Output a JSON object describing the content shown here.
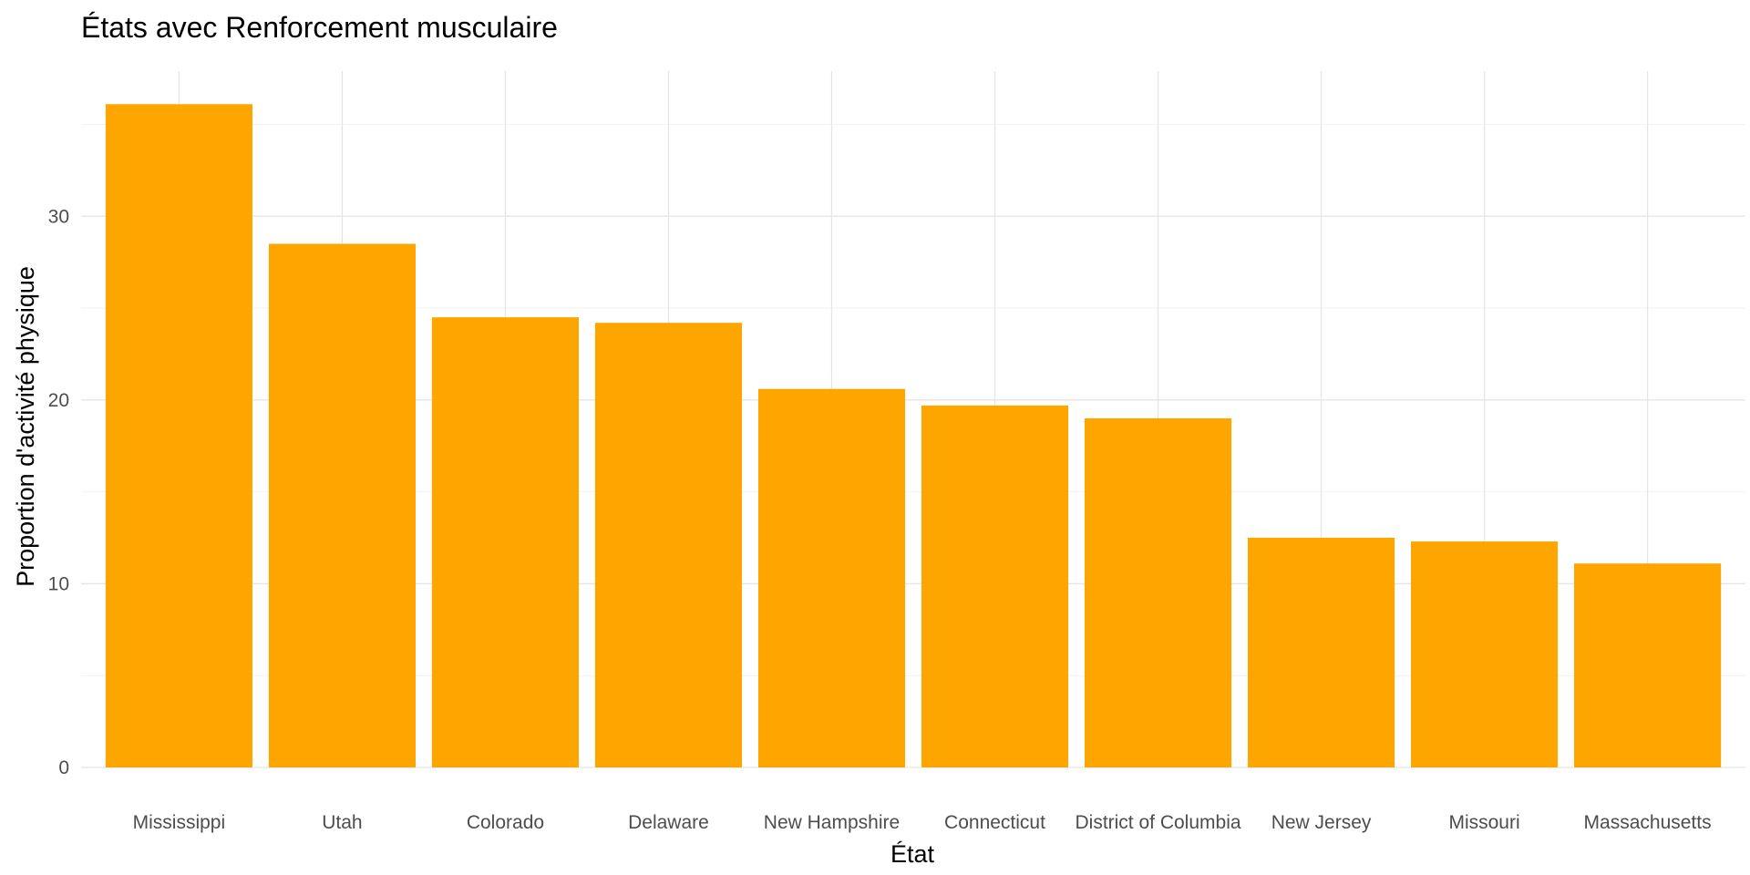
{
  "chart_data": {
    "type": "bar",
    "title": "États avec Renforcement musculaire",
    "xlabel": "État",
    "ylabel": "Proportion d'activité physique",
    "categories": [
      "Mississippi",
      "Utah",
      "Colorado",
      "Delaware",
      "New Hampshire",
      "Connecticut",
      "District of Columbia",
      "New Jersey",
      "Missouri",
      "Massachusetts"
    ],
    "values": [
      36.1,
      28.5,
      24.5,
      24.2,
      20.6,
      19.7,
      19.0,
      12.5,
      12.3,
      11.1
    ],
    "ylim": [
      0,
      37.9
    ],
    "yticks": [
      0,
      10,
      20,
      30
    ],
    "ytick_labels": [
      "0",
      "10",
      "20",
      "30"
    ],
    "grid": true,
    "legend": "none",
    "bar_color": "#FFA500"
  }
}
